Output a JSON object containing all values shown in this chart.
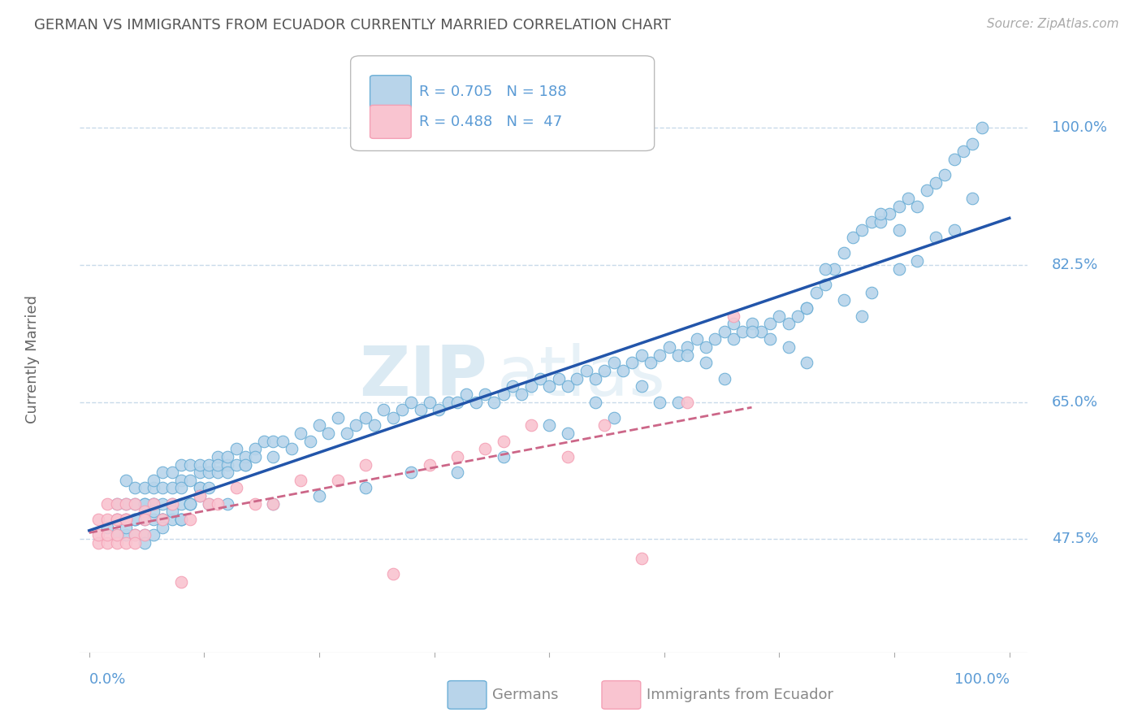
{
  "title": "GERMAN VS IMMIGRANTS FROM ECUADOR CURRENTLY MARRIED CORRELATION CHART",
  "source_text": "Source: ZipAtlas.com",
  "ylabel": "Currently Married",
  "xlim": [
    0.0,
    1.0
  ],
  "ylim": [
    0.33,
    1.08
  ],
  "xtick_positions": [
    0.0,
    0.125,
    0.25,
    0.375,
    0.5,
    0.625,
    0.75,
    0.875,
    1.0
  ],
  "xtick_labels_show": [
    "0.0%",
    "",
    "",
    "",
    "",
    "",
    "",
    "",
    "100.0%"
  ],
  "ytick_values": [
    0.475,
    0.65,
    0.825,
    1.0
  ],
  "ytick_labels": [
    "47.5%",
    "65.0%",
    "82.5%",
    "100.0%"
  ],
  "grid_color": "#c8daea",
  "background_color": "#ffffff",
  "legend_r1": "R = 0.705",
  "legend_n1": "N = 188",
  "legend_r2": "R = 0.488",
  "legend_n2": "N =  47",
  "blue_color": "#6aaed6",
  "pink_color": "#f4a0b5",
  "blue_fill": "#b8d4ea",
  "pink_fill": "#f9c4d0",
  "line_blue": "#2255aa",
  "line_pink": "#cc6688",
  "label_color": "#5b9bd5",
  "title_color": "#555555",
  "ylabel_color": "#666666",
  "watermark_color": "#d8e8f2",
  "legend_border": "#bbbbbb",
  "bottom_label_color": "#888888",
  "blue_x": [
    0.02,
    0.03,
    0.03,
    0.04,
    0.04,
    0.04,
    0.04,
    0.05,
    0.05,
    0.05,
    0.05,
    0.05,
    0.06,
    0.06,
    0.06,
    0.06,
    0.07,
    0.07,
    0.07,
    0.07,
    0.07,
    0.07,
    0.08,
    0.08,
    0.08,
    0.08,
    0.08,
    0.09,
    0.09,
    0.09,
    0.09,
    0.1,
    0.1,
    0.1,
    0.1,
    0.1,
    0.11,
    0.11,
    0.11,
    0.11,
    0.12,
    0.12,
    0.12,
    0.12,
    0.13,
    0.13,
    0.13,
    0.14,
    0.14,
    0.14,
    0.15,
    0.15,
    0.15,
    0.16,
    0.16,
    0.17,
    0.17,
    0.17,
    0.18,
    0.18,
    0.19,
    0.2,
    0.2,
    0.21,
    0.22,
    0.23,
    0.24,
    0.25,
    0.26,
    0.27,
    0.28,
    0.29,
    0.3,
    0.31,
    0.32,
    0.33,
    0.34,
    0.35,
    0.36,
    0.37,
    0.38,
    0.39,
    0.4,
    0.41,
    0.42,
    0.43,
    0.44,
    0.45,
    0.46,
    0.47,
    0.48,
    0.49,
    0.5,
    0.51,
    0.52,
    0.53,
    0.54,
    0.55,
    0.56,
    0.57,
    0.58,
    0.59,
    0.6,
    0.61,
    0.62,
    0.63,
    0.64,
    0.65,
    0.66,
    0.67,
    0.68,
    0.69,
    0.7,
    0.71,
    0.72,
    0.73,
    0.74,
    0.75,
    0.76,
    0.77,
    0.78,
    0.79,
    0.8,
    0.81,
    0.82,
    0.83,
    0.84,
    0.85,
    0.86,
    0.87,
    0.88,
    0.89,
    0.9,
    0.91,
    0.92,
    0.93,
    0.94,
    0.95,
    0.96,
    0.97,
    0.85,
    0.88,
    0.9,
    0.92,
    0.94,
    0.96,
    0.78,
    0.8,
    0.82,
    0.84,
    0.86,
    0.88,
    0.7,
    0.72,
    0.74,
    0.76,
    0.78,
    0.65,
    0.67,
    0.69,
    0.6,
    0.62,
    0.64,
    0.55,
    0.57,
    0.5,
    0.52,
    0.45,
    0.4,
    0.35,
    0.3,
    0.25,
    0.2,
    0.15,
    0.1,
    0.08,
    0.06,
    0.05,
    0.04,
    0.03,
    0.06,
    0.07,
    0.08,
    0.09,
    0.1,
    0.11,
    0.12,
    0.13
  ],
  "blue_y": [
    0.49,
    0.52,
    0.5,
    0.48,
    0.52,
    0.55,
    0.5,
    0.5,
    0.48,
    0.52,
    0.54,
    0.5,
    0.5,
    0.52,
    0.48,
    0.54,
    0.52,
    0.5,
    0.54,
    0.48,
    0.52,
    0.55,
    0.54,
    0.5,
    0.52,
    0.5,
    0.56,
    0.54,
    0.52,
    0.5,
    0.56,
    0.55,
    0.52,
    0.5,
    0.54,
    0.57,
    0.55,
    0.52,
    0.57,
    0.52,
    0.54,
    0.56,
    0.54,
    0.57,
    0.54,
    0.56,
    0.57,
    0.56,
    0.58,
    0.57,
    0.57,
    0.56,
    0.58,
    0.57,
    0.59,
    0.57,
    0.58,
    0.57,
    0.59,
    0.58,
    0.6,
    0.6,
    0.58,
    0.6,
    0.59,
    0.61,
    0.6,
    0.62,
    0.61,
    0.63,
    0.61,
    0.62,
    0.63,
    0.62,
    0.64,
    0.63,
    0.64,
    0.65,
    0.64,
    0.65,
    0.64,
    0.65,
    0.65,
    0.66,
    0.65,
    0.66,
    0.65,
    0.66,
    0.67,
    0.66,
    0.67,
    0.68,
    0.67,
    0.68,
    0.67,
    0.68,
    0.69,
    0.68,
    0.69,
    0.7,
    0.69,
    0.7,
    0.71,
    0.7,
    0.71,
    0.72,
    0.71,
    0.72,
    0.73,
    0.72,
    0.73,
    0.74,
    0.73,
    0.74,
    0.75,
    0.74,
    0.75,
    0.76,
    0.75,
    0.76,
    0.77,
    0.79,
    0.8,
    0.82,
    0.84,
    0.86,
    0.87,
    0.88,
    0.88,
    0.89,
    0.9,
    0.91,
    0.9,
    0.92,
    0.93,
    0.94,
    0.96,
    0.97,
    0.98,
    1.0,
    0.79,
    0.82,
    0.83,
    0.86,
    0.87,
    0.91,
    0.77,
    0.82,
    0.78,
    0.76,
    0.89,
    0.87,
    0.75,
    0.74,
    0.73,
    0.72,
    0.7,
    0.71,
    0.7,
    0.68,
    0.67,
    0.65,
    0.65,
    0.65,
    0.63,
    0.62,
    0.61,
    0.58,
    0.56,
    0.56,
    0.54,
    0.53,
    0.52,
    0.52,
    0.5,
    0.5,
    0.52,
    0.5,
    0.49,
    0.48,
    0.47,
    0.51,
    0.49,
    0.51,
    0.5,
    0.52,
    0.53,
    0.52
  ],
  "pink_x": [
    0.01,
    0.01,
    0.01,
    0.02,
    0.02,
    0.02,
    0.02,
    0.03,
    0.03,
    0.03,
    0.03,
    0.03,
    0.04,
    0.04,
    0.04,
    0.04,
    0.05,
    0.05,
    0.05,
    0.06,
    0.06,
    0.06,
    0.07,
    0.08,
    0.09,
    0.1,
    0.11,
    0.12,
    0.13,
    0.14,
    0.16,
    0.18,
    0.2,
    0.23,
    0.27,
    0.3,
    0.33,
    0.37,
    0.4,
    0.43,
    0.45,
    0.48,
    0.52,
    0.56,
    0.6,
    0.65,
    0.7
  ],
  "pink_y": [
    0.47,
    0.5,
    0.48,
    0.47,
    0.5,
    0.52,
    0.48,
    0.47,
    0.5,
    0.52,
    0.48,
    0.5,
    0.5,
    0.52,
    0.47,
    0.5,
    0.52,
    0.48,
    0.47,
    0.51,
    0.5,
    0.48,
    0.52,
    0.5,
    0.52,
    0.42,
    0.5,
    0.53,
    0.52,
    0.52,
    0.54,
    0.52,
    0.52,
    0.55,
    0.55,
    0.57,
    0.43,
    0.57,
    0.58,
    0.59,
    0.6,
    0.62,
    0.58,
    0.62,
    0.45,
    0.65,
    0.76
  ]
}
